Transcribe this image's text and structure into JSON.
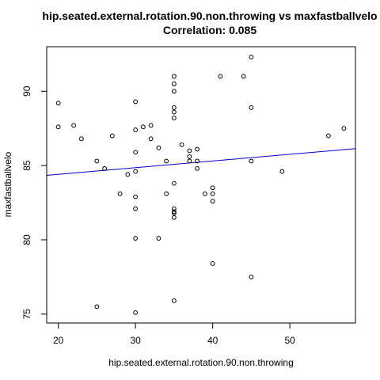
{
  "chart_data": {
    "type": "scatter",
    "title": "hip.seated.external.rotation.90.non.throwing vs maxfastballvelo",
    "subtitle": "Correlation: 0.085",
    "xlabel": "hip.seated.external.rotation.90.non.throwing",
    "ylabel": "maxfastballvelo",
    "xlim": [
      18.5,
      58.5
    ],
    "ylim": [
      74.4,
      93.0
    ],
    "x_ticks": [
      20,
      30,
      40,
      50
    ],
    "y_ticks": [
      75,
      80,
      85,
      90
    ],
    "grid": false,
    "point_color": "#000000",
    "line_color": "#0000cc",
    "trend_line": {
      "x": [
        18.5,
        58.5
      ],
      "y": [
        84.34,
        86.14
      ]
    },
    "points": [
      {
        "x": 20,
        "y": 89.2
      },
      {
        "x": 20,
        "y": 87.6
      },
      {
        "x": 22,
        "y": 87.7
      },
      {
        "x": 23,
        "y": 86.8
      },
      {
        "x": 25,
        "y": 85.3
      },
      {
        "x": 25,
        "y": 75.5
      },
      {
        "x": 26,
        "y": 84.8
      },
      {
        "x": 27,
        "y": 87.0
      },
      {
        "x": 28,
        "y": 83.1
      },
      {
        "x": 29,
        "y": 84.4
      },
      {
        "x": 30,
        "y": 89.3
      },
      {
        "x": 30,
        "y": 87.4
      },
      {
        "x": 30,
        "y": 85.9
      },
      {
        "x": 30,
        "y": 84.6
      },
      {
        "x": 30,
        "y": 82.9
      },
      {
        "x": 30,
        "y": 82.1
      },
      {
        "x": 30,
        "y": 80.1
      },
      {
        "x": 30,
        "y": 75.1
      },
      {
        "x": 31,
        "y": 87.6
      },
      {
        "x": 32,
        "y": 87.7
      },
      {
        "x": 32,
        "y": 86.8
      },
      {
        "x": 33,
        "y": 86.2
      },
      {
        "x": 33,
        "y": 80.1
      },
      {
        "x": 34,
        "y": 85.3
      },
      {
        "x": 34,
        "y": 83.1
      },
      {
        "x": 35,
        "y": 91.0
      },
      {
        "x": 35,
        "y": 90.5
      },
      {
        "x": 35,
        "y": 90.0
      },
      {
        "x": 35,
        "y": 88.9
      },
      {
        "x": 35,
        "y": 88.6
      },
      {
        "x": 35,
        "y": 88.2
      },
      {
        "x": 35,
        "y": 83.8
      },
      {
        "x": 35,
        "y": 82.1
      },
      {
        "x": 35,
        "y": 81.9
      },
      {
        "x": 35,
        "y": 81.8
      },
      {
        "x": 35,
        "y": 81.5
      },
      {
        "x": 35,
        "y": 75.9
      },
      {
        "x": 36,
        "y": 86.4
      },
      {
        "x": 37,
        "y": 86.0
      },
      {
        "x": 37,
        "y": 85.6
      },
      {
        "x": 37,
        "y": 85.3
      },
      {
        "x": 38,
        "y": 86.1
      },
      {
        "x": 38,
        "y": 85.3
      },
      {
        "x": 38,
        "y": 84.8
      },
      {
        "x": 39,
        "y": 83.1
      },
      {
        "x": 40,
        "y": 83.5
      },
      {
        "x": 40,
        "y": 83.1
      },
      {
        "x": 40,
        "y": 82.6
      },
      {
        "x": 40,
        "y": 78.4
      },
      {
        "x": 41,
        "y": 91.0
      },
      {
        "x": 44,
        "y": 91.0
      },
      {
        "x": 45,
        "y": 92.3
      },
      {
        "x": 45,
        "y": 88.9
      },
      {
        "x": 45,
        "y": 85.3
      },
      {
        "x": 45,
        "y": 77.5
      },
      {
        "x": 49,
        "y": 84.6
      },
      {
        "x": 55,
        "y": 87.0
      },
      {
        "x": 57,
        "y": 87.5
      }
    ]
  }
}
